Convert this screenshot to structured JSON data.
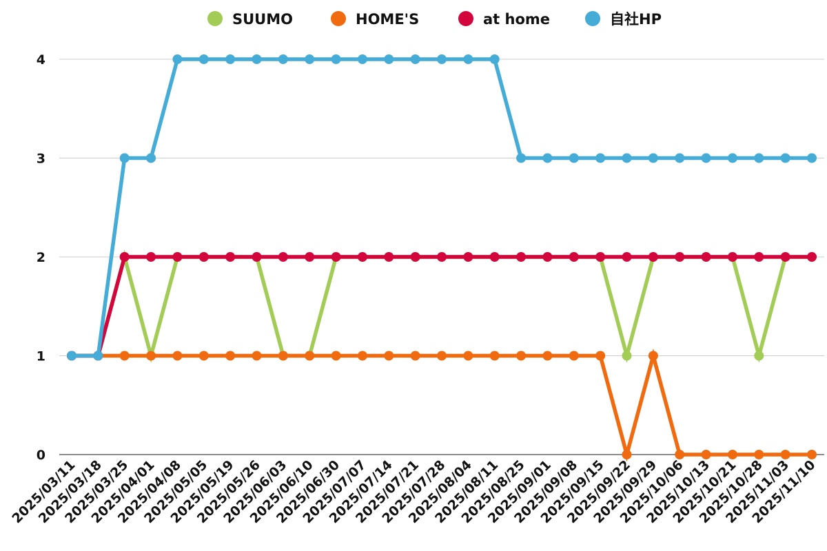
{
  "chart_data": {
    "type": "line",
    "title": "",
    "xlabel": "",
    "ylabel": "",
    "ylim": [
      0,
      4
    ],
    "yticks": [
      0,
      1,
      2,
      3,
      4
    ],
    "grid": "horizontal",
    "legend_position": "top-center",
    "categories": [
      "2025/03/11",
      "2025/03/18",
      "2025/03/25",
      "2025/04/01",
      "2025/04/08",
      "2025/05/05",
      "2025/05/19",
      "2025/05/26",
      "2025/06/03",
      "2025/06/10",
      "2025/06/30",
      "2025/07/07",
      "2025/07/14",
      "2025/07/21",
      "2025/07/28",
      "2025/08/04",
      "2025/08/11",
      "2025/08/25",
      "2025/09/01",
      "2025/09/08",
      "2025/09/15",
      "2025/09/22",
      "2025/09/29",
      "2025/10/06",
      "2025/10/13",
      "2025/10/21",
      "2025/10/28",
      "2025/11/03",
      "2025/11/10"
    ],
    "series": [
      {
        "name": "SUUMO",
        "color": "#a3cc57",
        "values": [
          1,
          1,
          2,
          1,
          2,
          2,
          2,
          2,
          1,
          1,
          2,
          2,
          2,
          2,
          2,
          2,
          2,
          2,
          2,
          2,
          2,
          1,
          2,
          2,
          2,
          2,
          1,
          2,
          2
        ]
      },
      {
        "name": "HOME'S",
        "color": "#f06a0f",
        "values": [
          1,
          1,
          1,
          1,
          1,
          1,
          1,
          1,
          1,
          1,
          1,
          1,
          1,
          1,
          1,
          1,
          1,
          1,
          1,
          1,
          1,
          0,
          1,
          0,
          0,
          0,
          0,
          0,
          0
        ]
      },
      {
        "name": "at home",
        "color": "#d2063c",
        "values": [
          1,
          1,
          2,
          2,
          2,
          2,
          2,
          2,
          2,
          2,
          2,
          2,
          2,
          2,
          2,
          2,
          2,
          2,
          2,
          2,
          2,
          2,
          2,
          2,
          2,
          2,
          2,
          2,
          2
        ]
      },
      {
        "name": "自社HP",
        "color": "#45acd8",
        "values": [
          1,
          1,
          3,
          3,
          4,
          4,
          4,
          4,
          4,
          4,
          4,
          4,
          4,
          4,
          4,
          4,
          4,
          3,
          3,
          3,
          3,
          3,
          3,
          3,
          3,
          3,
          3,
          3,
          3
        ]
      }
    ]
  }
}
